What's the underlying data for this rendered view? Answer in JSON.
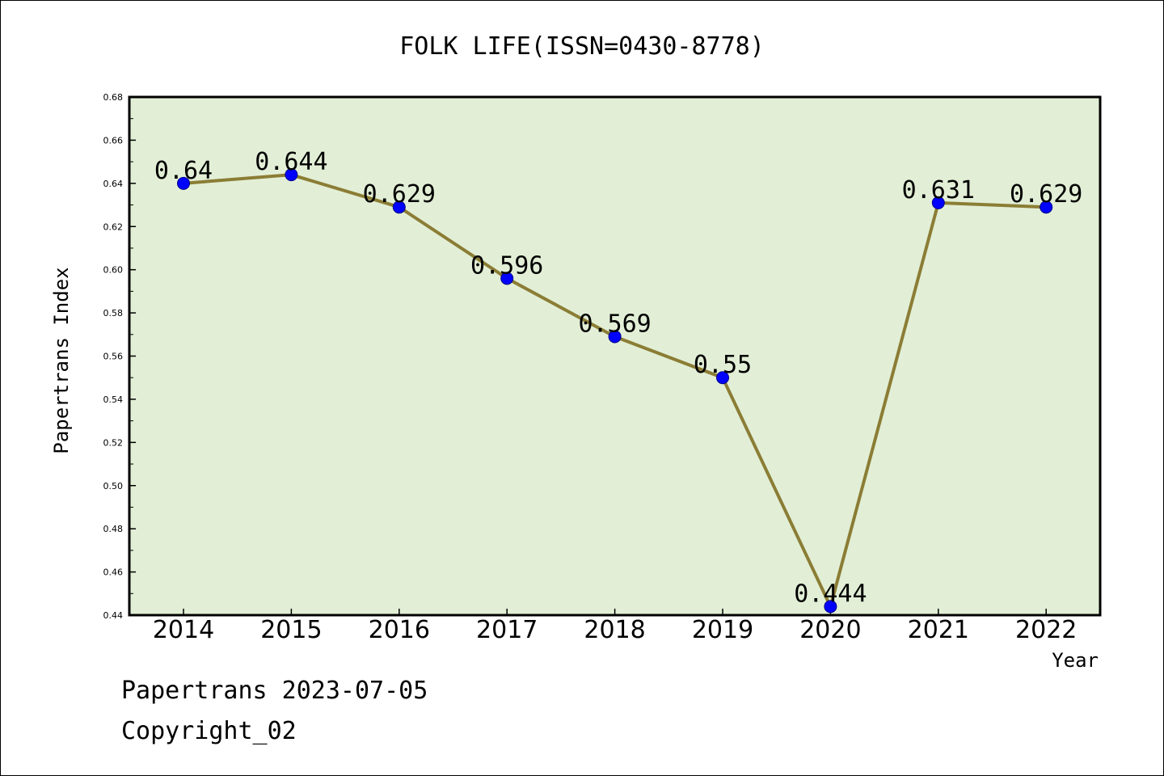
{
  "chart_data": {
    "type": "line",
    "title": "FOLK LIFE(ISSN=0430-8778)",
    "xlabel": "Year",
    "ylabel": "Papertrans Index",
    "categories": [
      "2014",
      "2015",
      "2016",
      "2017",
      "2018",
      "2019",
      "2020",
      "2021",
      "2022"
    ],
    "series": [
      {
        "values": [
          0.64,
          0.644,
          0.629,
          0.596,
          0.569,
          0.55,
          0.444,
          0.631,
          0.629
        ]
      }
    ],
    "data_labels": [
      "0.64",
      "0.644",
      "0.629",
      "0.596",
      "0.569",
      "0.55",
      "0.444",
      "0.631",
      "0.629"
    ],
    "ylim": [
      0.44,
      0.68
    ],
    "yticks": [
      "0.44",
      "0.46",
      "0.48",
      "0.50",
      "0.52",
      "0.54",
      "0.56",
      "0.58",
      "0.60",
      "0.62",
      "0.64",
      "0.66",
      "0.68"
    ],
    "grid": false,
    "colors": {
      "plot_bg": "#e2efd6",
      "line": "#8b7d35",
      "marker": "#0000ff"
    }
  },
  "footer": {
    "line1": "Papertrans 2023-07-05",
    "line2": "Copyright_02"
  }
}
